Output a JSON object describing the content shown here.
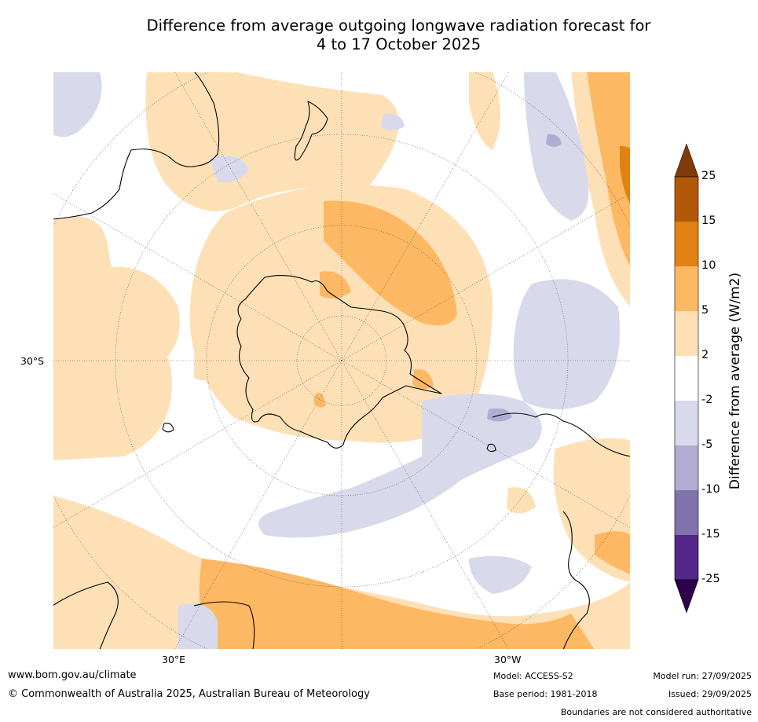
{
  "title": {
    "line1": "Difference from average outgoing longwave radiation forecast for",
    "line2": "4 to 17 October 2025"
  },
  "map": {
    "projection": "south-polar-stereographic",
    "lat_label": "30°S",
    "lon_labels": {
      "east": "30°E",
      "west": "30°W"
    },
    "ocean_color": "#ffffff",
    "coastline_color": "#000000",
    "regions": [
      "Antarctica",
      "Australia",
      "New Zealand",
      "South America",
      "Africa"
    ]
  },
  "colorbar": {
    "label": "Difference from average (W/m2)",
    "ticks": [
      "25",
      "15",
      "10",
      "5",
      "2",
      "-2",
      "-5",
      "-10",
      "-15",
      "-25"
    ],
    "bins": [
      {
        "range": "15 to 25",
        "color": "#b35806"
      },
      {
        "range": "10 to 15",
        "color": "#e08214"
      },
      {
        "range": "5 to 10",
        "color": "#fdb863"
      },
      {
        "range": "2 to 5",
        "color": "#fee0b6"
      },
      {
        "range": "-2 to 2",
        "color": "#ffffff"
      },
      {
        "range": "-5 to -2",
        "color": "#d8daeb"
      },
      {
        "range": "-10 to -5",
        "color": "#b2abd2"
      },
      {
        "range": "-15 to -10",
        "color": "#8073ac"
      },
      {
        "range": "-25 to -15",
        "color": "#542788"
      }
    ],
    "over_color": "#7f3b08",
    "under_color": "#2d004b"
  },
  "footer": {
    "url": "www.bom.gov.au/climate",
    "copyright": "© Commonwealth of Australia 2025, Australian Bureau of Meteorology",
    "model": "Model: ACCESS-S2",
    "base_period": "Base period: 1981-2018",
    "model_run": "Model run: 27/09/2025",
    "issued": "Issued: 29/09/2025",
    "disclaimer": "Boundaries are not considered authoritative"
  }
}
